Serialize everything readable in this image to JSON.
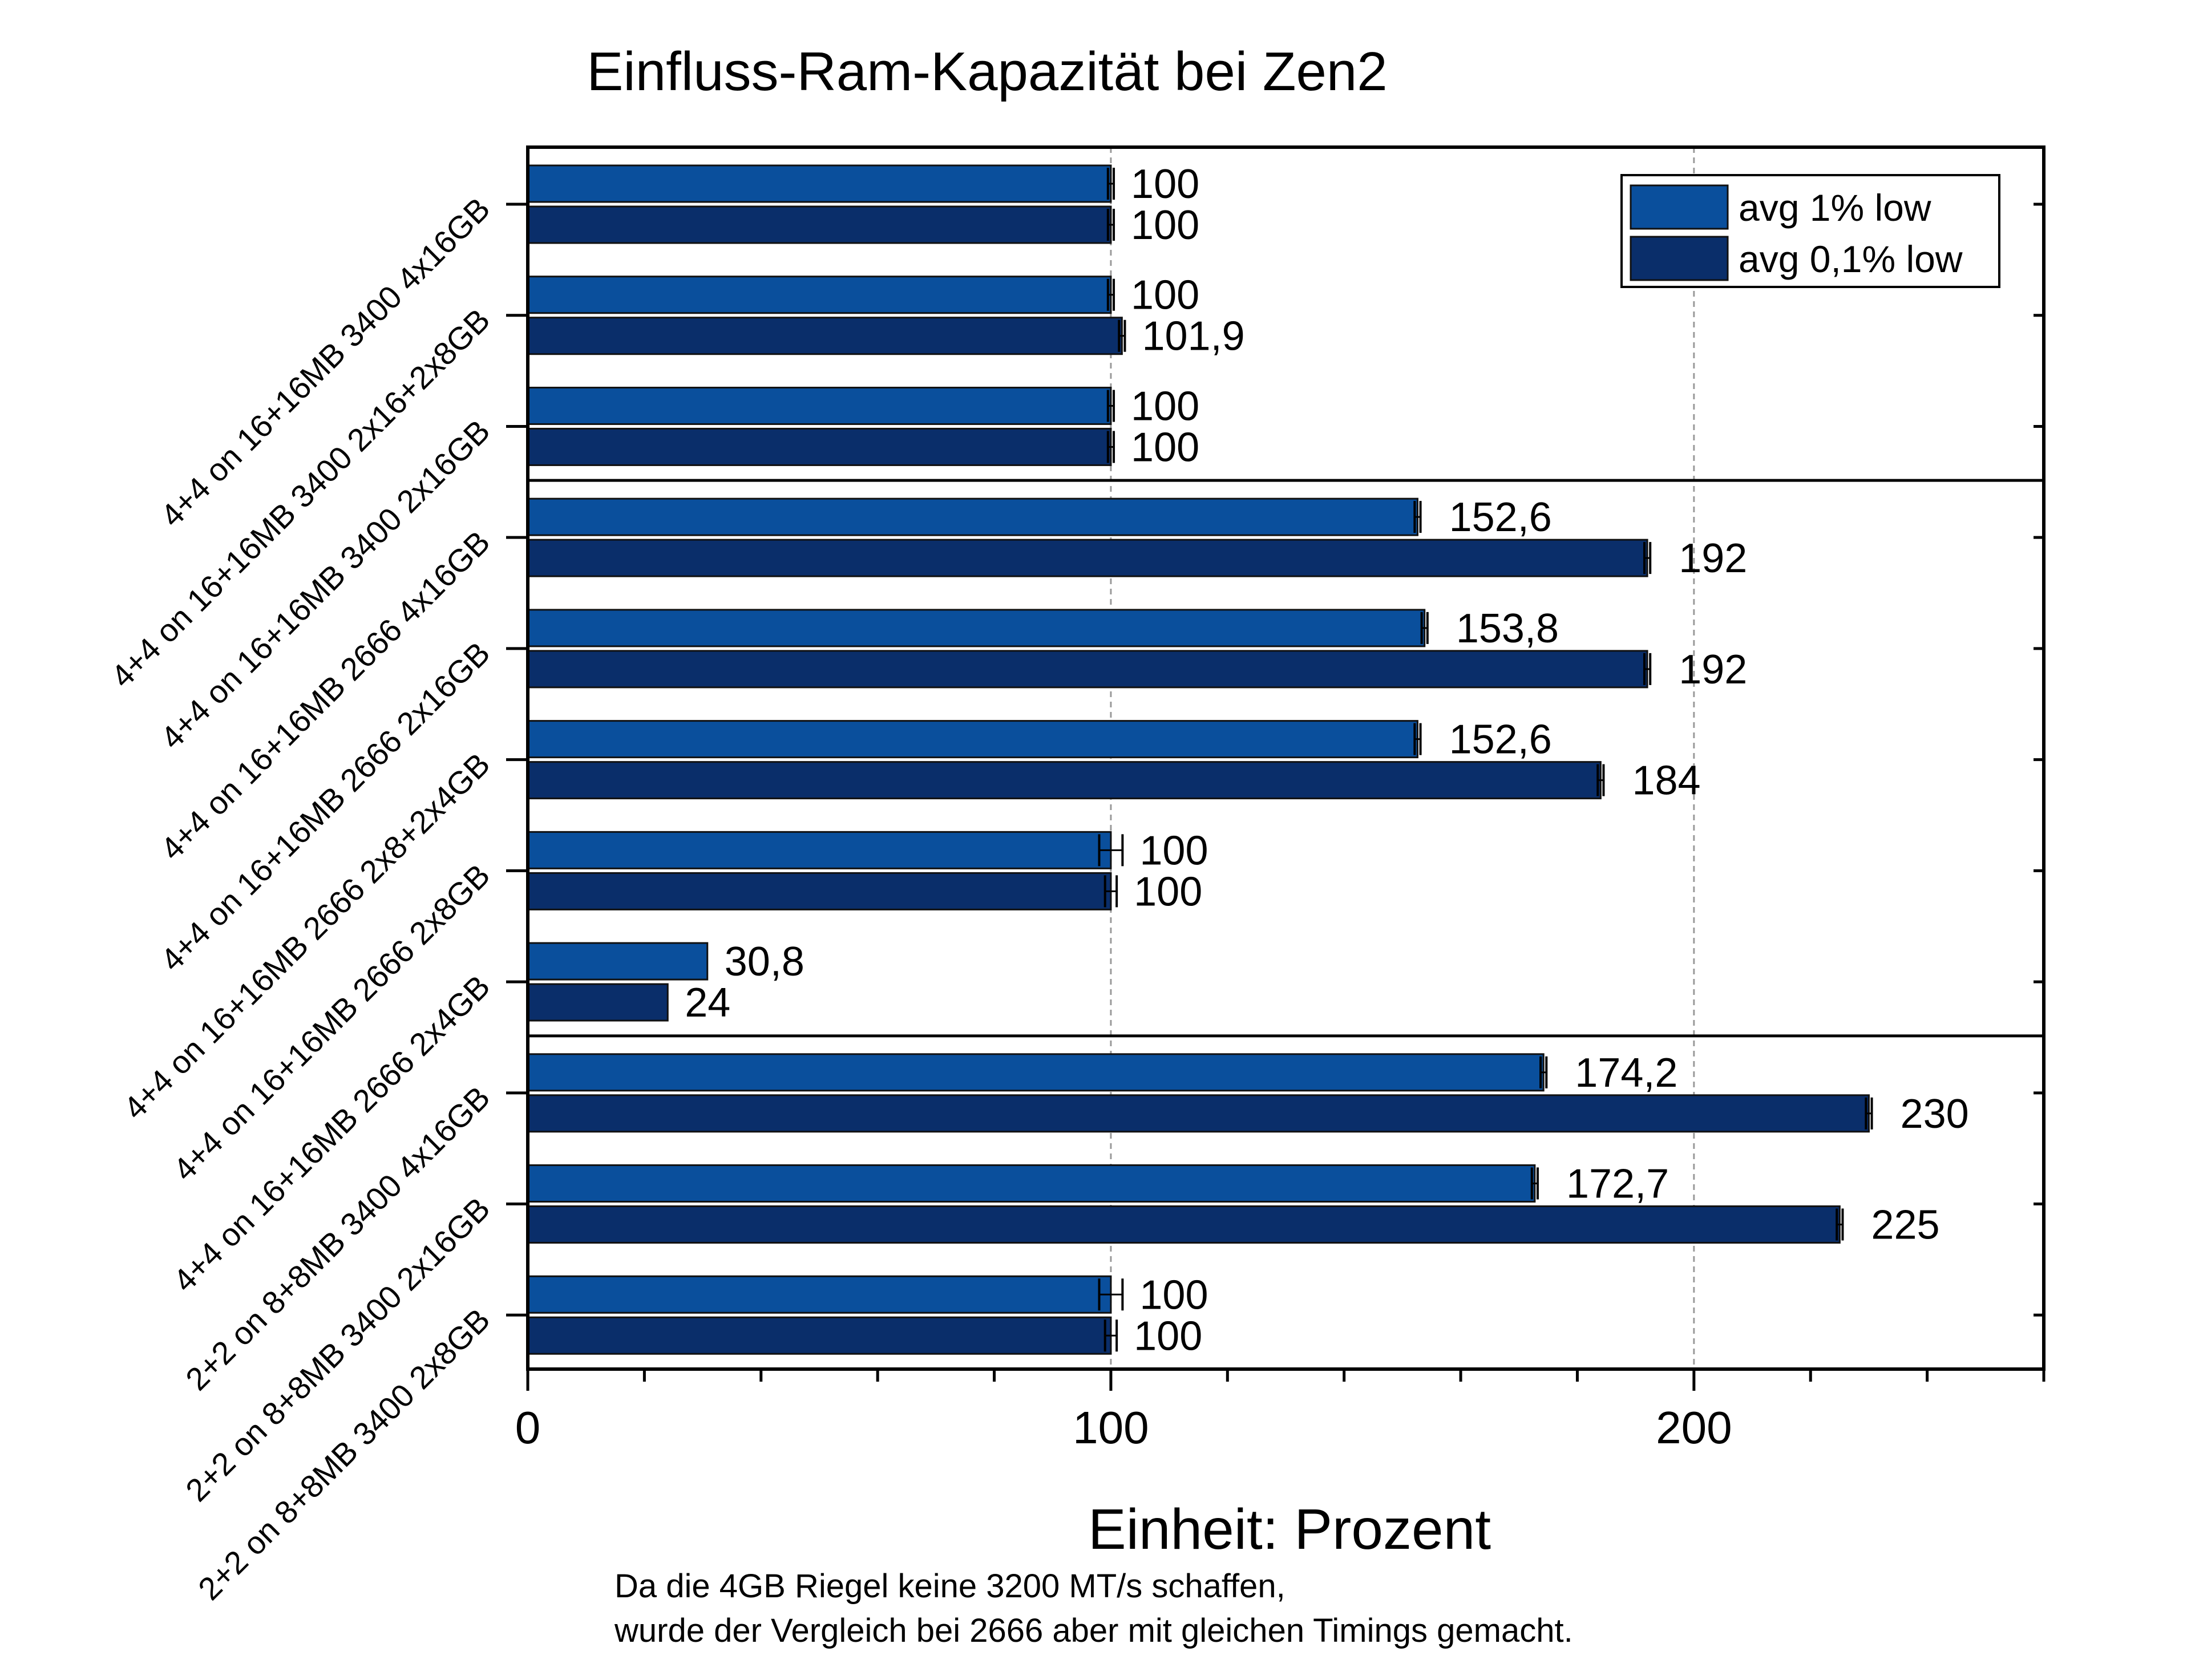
{
  "chart_data": {
    "type": "bar",
    "orientation": "horizontal",
    "title": "Einfluss-Ram-Kapazität bei Zen2",
    "xlabel": "Einheit: Prozent",
    "ylabel": "",
    "xlim": [
      0,
      260
    ],
    "x_ticks": [
      0,
      100,
      200
    ],
    "x_tick_labels": [
      "0",
      "100",
      "200"
    ],
    "grid": "vertical dashed at 100 and 200",
    "legend_position": "top-right",
    "categories": [
      "4+4 on 16+16MB 3400 4x16GB",
      "4+4 on 16+16MB 3400 2x16+2x8GB",
      "4+4 on 16+16MB 3400 2x16GB",
      "4+4 on 16+16MB 2666 4x16GB",
      "4+4 on 16+16MB 2666 2x16GB",
      "4+4 on 16+16MB 2666 2x8+2x4GB",
      "4+4 on 16+16MB 2666 2x8GB",
      "4+4 on 16+16MB 2666 2x4GB",
      "2+2 on 8+8MB 3400 4x16GB",
      "2+2 on 8+8MB 3400 2x16GB",
      "2+2 on 8+8MB 3400 2x8GB"
    ],
    "series": [
      {
        "name": "avg 1% low",
        "color": "#0a4f9c",
        "values": [
          100,
          100,
          100,
          152.6,
          153.8,
          152.6,
          100,
          30.8,
          174.2,
          172.7,
          100
        ],
        "labels": [
          "100",
          "100",
          "100",
          "152,6",
          "153,8",
          "152,6",
          "100",
          "30,8",
          "174,2",
          "172,7",
          "100"
        ],
        "error_bars": [
          0.5,
          0.5,
          0.5,
          0.5,
          0.5,
          0.5,
          2,
          0,
          0.5,
          0.5,
          2
        ]
      },
      {
        "name": "avg 0,1% low",
        "color": "#0a2e6a",
        "values": [
          100,
          101.9,
          100,
          192,
          192,
          184,
          100,
          24,
          230,
          225,
          100
        ],
        "labels": [
          "100",
          "101,9",
          "100",
          "192",
          "192",
          "184",
          "100",
          "24",
          "230",
          "225",
          "100"
        ],
        "error_bars": [
          0.5,
          0.5,
          0.5,
          0.5,
          0.5,
          0.5,
          1,
          0,
          0.5,
          0.5,
          1
        ]
      }
    ],
    "group_separators_after": [
      2,
      7
    ],
    "footnote": [
      "Da die 4GB Riegel keine 3200 MT/s schaffen,",
      "wurde der Vergleich bei 2666 aber mit gleichen Timings gemacht."
    ]
  }
}
